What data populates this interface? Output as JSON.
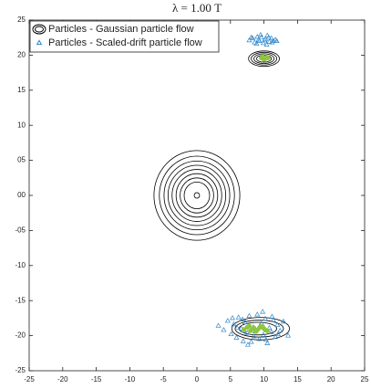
{
  "chart_data": {
    "type": "scatter",
    "title": "λ = 1.00 T",
    "xlim": [
      -25,
      25
    ],
    "ylim": [
      -25,
      25
    ],
    "xticks": [
      -25,
      -20,
      -15,
      -10,
      -5,
      0,
      5,
      10,
      15,
      20,
      25
    ],
    "yticks": [
      -25,
      -20,
      -15,
      -10,
      {
        "value": -5,
        "label": "-05"
      },
      {
        "value": 0,
        "label": "00"
      },
      {
        "value": 5,
        "label": "05"
      },
      10,
      15,
      20,
      25
    ],
    "grid": false,
    "legend": "upper left",
    "contours": {
      "name": "Particles - Gaussian particle flow",
      "color": "#000000",
      "ellipses": [
        {
          "cx": 0,
          "cy": 0,
          "rx": 6.4,
          "ry": 6.4
        },
        {
          "cx": 0,
          "cy": 0,
          "rx": 5.6,
          "ry": 5.6
        },
        {
          "cx": 0,
          "cy": 0,
          "rx": 4.9,
          "ry": 4.9
        },
        {
          "cx": 0,
          "cy": 0,
          "rx": 4.3,
          "ry": 4.3
        },
        {
          "cx": 0,
          "cy": 0,
          "rx": 3.7,
          "ry": 3.7
        },
        {
          "cx": 0,
          "cy": 0,
          "rx": 3.1,
          "ry": 3.1
        },
        {
          "cx": 0,
          "cy": 0,
          "rx": 2.5,
          "ry": 2.5
        },
        {
          "cx": 0,
          "cy": 0,
          "rx": 1.9,
          "ry": 1.9
        },
        {
          "cx": 0,
          "cy": 0,
          "rx": 0.4,
          "ry": 0.4
        },
        {
          "cx": 10,
          "cy": 19.5,
          "rx": 2.3,
          "ry": 1.1
        },
        {
          "cx": 10,
          "cy": 19.5,
          "rx": 1.9,
          "ry": 0.9
        },
        {
          "cx": 10,
          "cy": 19.5,
          "rx": 1.5,
          "ry": 0.7
        },
        {
          "cx": 10,
          "cy": 19.5,
          "rx": 1.1,
          "ry": 0.5
        },
        {
          "cx": 9.5,
          "cy": -19,
          "rx": 4.3,
          "ry": 1.6
        },
        {
          "cx": 9.3,
          "cy": -19,
          "rx": 3.6,
          "ry": 1.2
        },
        {
          "cx": 9.1,
          "cy": -19,
          "rx": 2.8,
          "ry": 0.9
        }
      ]
    },
    "series": [
      {
        "name": "Particles - Scaled-drift particle flow",
        "color": "#2f86c8",
        "marker": "triangle",
        "x": [
          7.8,
          8.3,
          8.6,
          9.0,
          9.3,
          9.6,
          9.9,
          10.2,
          10.5,
          10.8,
          11.1,
          11.4,
          11.7,
          8.9,
          9.5,
          10.1,
          10.7,
          11.2,
          9.2,
          10.4,
          11.9,
          8.1,
          3.2,
          4.0,
          4.6,
          5.1,
          5.5,
          5.9,
          6.2,
          6.6,
          6.9,
          7.2,
          7.5,
          7.8,
          8.1,
          8.4,
          8.7,
          9.0,
          9.3,
          9.6,
          9.9,
          10.2,
          10.5,
          10.8,
          11.1,
          11.4,
          11.7,
          12.0,
          12.4,
          12.9,
          13.6,
          5.3,
          6.0,
          6.8,
          7.6,
          8.5,
          9.4,
          10.3,
          11.2,
          12.1,
          7.0,
          9.8
        ],
        "y": [
          22.1,
          22.4,
          21.8,
          22.6,
          22.0,
          22.5,
          21.7,
          22.3,
          22.8,
          21.9,
          22.4,
          22.0,
          22.2,
          21.6,
          22.9,
          22.1,
          22.5,
          21.8,
          22.2,
          21.5,
          22.0,
          22.5,
          -18.6,
          -19.2,
          -17.9,
          -19.8,
          -18.4,
          -20.3,
          -17.4,
          -19.0,
          -20.8,
          -18.1,
          -19.6,
          -17.2,
          -20.9,
          -18.8,
          -19.4,
          -17.0,
          -20.5,
          -18.3,
          -19.9,
          -17.6,
          -21.1,
          -18.9,
          -19.5,
          -17.8,
          -20.2,
          -18.5,
          -19.3,
          -18.0,
          -20.0,
          -17.5,
          -18.9,
          -17.7,
          -21.3,
          -20.1,
          -18.6,
          -20.6,
          -17.3,
          -19.8,
          -19.3,
          -16.6
        ]
      },
      {
        "color": "#8dc63f",
        "marker": "dot",
        "x": [
          9.6,
          10.0,
          10.4,
          9.8,
          10.2,
          10.6,
          7.0,
          7.5,
          8.0,
          8.5,
          9.0,
          9.5,
          10.0,
          10.5,
          7.8,
          8.8,
          9.8,
          8.2,
          9.3,
          10.2
        ],
        "y": [
          19.6,
          19.4,
          19.7,
          19.8,
          19.5,
          19.6,
          -19.1,
          -18.8,
          -19.3,
          -18.9,
          -19.2,
          -18.7,
          -19.0,
          -19.3,
          -18.6,
          -19.4,
          -18.7,
          -19.1,
          -18.9,
          -19.2
        ]
      }
    ]
  }
}
